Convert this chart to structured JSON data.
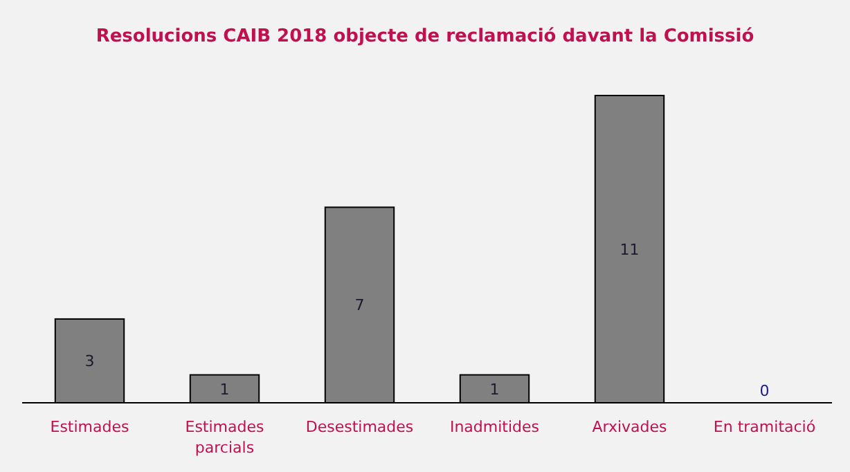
{
  "chart_data": {
    "type": "bar",
    "title": "Resolucions CAIB 2018  objecte de reclamació davant la Comissió",
    "categories": [
      "Estimades",
      "Estimades parcials",
      "Desestimades",
      "Inadmitides",
      "Arxivades",
      "En tramitació"
    ],
    "values": [
      3,
      1,
      7,
      1,
      11,
      0
    ],
    "color": "#808080",
    "data_labels": true
  }
}
